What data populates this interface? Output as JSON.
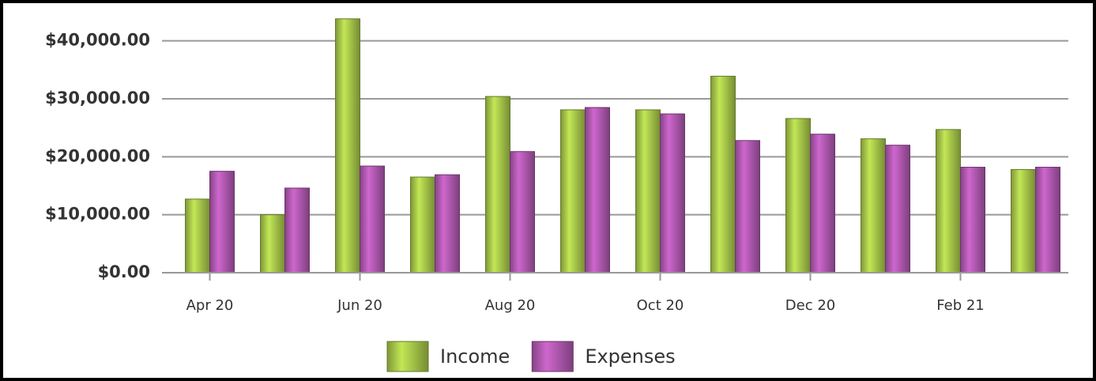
{
  "chart_data": {
    "type": "bar",
    "categories": [
      "Apr 20",
      null,
      "Jun 20",
      null,
      "Aug 20",
      null,
      "Oct 20",
      null,
      "Dec 20",
      null,
      "Feb 21",
      null
    ],
    "series": [
      {
        "name": "Income",
        "color": "#a9c94a",
        "values": [
          12700,
          10000,
          43800,
          16500,
          30400,
          28100,
          28100,
          33900,
          26600,
          23100,
          24700,
          17800
        ]
      },
      {
        "name": "Expenses",
        "color": "#b35ab3",
        "values": [
          17500,
          14600,
          18400,
          16900,
          20900,
          28500,
          27400,
          22800,
          23900,
          22000,
          18200,
          18200
        ]
      }
    ],
    "ylim": [
      0,
      45000
    ],
    "yticks": [
      {
        "value": 0,
        "label": "$0.00"
      },
      {
        "value": 10000,
        "label": "$10,000.00"
      },
      {
        "value": 20000,
        "label": "$20,000.00"
      },
      {
        "value": 30000,
        "label": "$30,000.00"
      },
      {
        "value": 40000,
        "label": "$40,000.00"
      }
    ],
    "grid": true,
    "legend": "bottom"
  }
}
